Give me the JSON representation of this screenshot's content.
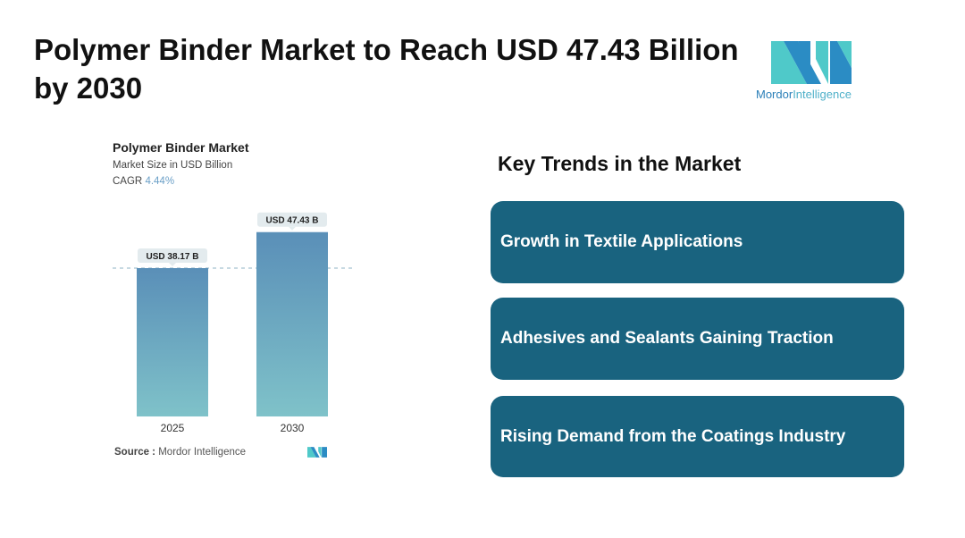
{
  "title": "Polymer Binder Market to Reach USD 47.43 Billion by 2030",
  "brand": {
    "name_part1": "Mordor",
    "name_part2": "Intelligence",
    "colors": [
      "#2b8cc4",
      "#4fc9c9"
    ]
  },
  "chart_data": {
    "type": "bar",
    "title": "Polymer Binder Market",
    "subtitle": "Market Size in USD Billion",
    "cagr_label": "CAGR",
    "cagr_value": "4.44%",
    "categories": [
      "2025",
      "2030"
    ],
    "values": [
      38.17,
      47.43
    ],
    "data_labels": [
      "USD 38.17 B",
      "USD 47.43 B"
    ],
    "ylim": [
      0,
      50
    ],
    "grid": false,
    "reference_line": "dashed at 2025 value",
    "bar_gradient": [
      "#5a8fb8",
      "#7fc2c9"
    ],
    "source_label": "Source :",
    "source_value": "Mordor Intelligence"
  },
  "trends": {
    "heading": "Key Trends in the Market",
    "items": [
      "Growth in Textile Applications",
      "Adhesives and Sealants Gaining Traction",
      "Rising Demand from the Coatings Industry"
    ],
    "card_color": "#19637f"
  }
}
